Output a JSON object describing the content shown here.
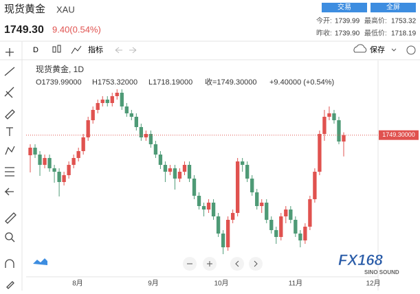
{
  "header": {
    "symbol": "现货黄金",
    "code": "XAU",
    "price": "1749.30",
    "change": "9.40(0.54%)",
    "buttons": [
      "交易",
      "全屏"
    ],
    "stats": [
      {
        "label": "今开:",
        "value": "1739.99"
      },
      {
        "label": "最高价:",
        "value": "1753.32"
      },
      {
        "label": "昨收:",
        "value": "1739.90"
      },
      {
        "label": "最低价:",
        "value": "1718.19"
      }
    ]
  },
  "toolbar": {
    "interval": "D",
    "indicators": "指标",
    "save": "保存"
  },
  "logo": {
    "name": "FX168",
    "sub": "SINO SOUND"
  },
  "chart_data": {
    "type": "candlestick",
    "legend_title": "现货黄金, 1D",
    "ohlc_text": [
      "O1739.99000",
      "H1753.32000",
      "L1718.19000",
      "收=1749.30000",
      "+9.40000 (+0.54%)"
    ],
    "up_color": "#e0524f",
    "down_color": "#4e9a76",
    "open": [
      1720,
      1731,
      1721,
      1706,
      1716,
      1701,
      1696,
      1681,
      1691,
      1706,
      1716,
      1726,
      1746,
      1771,
      1786,
      1796,
      1801,
      1796,
      1806,
      1811,
      1791,
      1781,
      1776,
      1761,
      1746,
      1751,
      1736,
      1721,
      1706,
      1696,
      1701,
      1686,
      1696,
      1706,
      1686,
      1661,
      1646,
      1641,
      1651,
      1631,
      1606,
      1586,
      1626,
      1636,
      1711,
      1706,
      1686,
      1666,
      1646,
      1651,
      1626,
      1611,
      1601,
      1631,
      1641,
      1626,
      1606,
      1596,
      1616,
      1656,
      1696,
      1751,
      1776,
      1781,
      1771,
      1739.99
    ],
    "high": [
      1736,
      1736,
      1726,
      1721,
      1721,
      1706,
      1701,
      1696,
      1711,
      1721,
      1731,
      1751,
      1776,
      1791,
      1801,
      1806,
      1806,
      1811,
      1816,
      1816,
      1796,
      1786,
      1781,
      1766,
      1756,
      1756,
      1741,
      1726,
      1711,
      1706,
      1706,
      1701,
      1711,
      1711,
      1691,
      1666,
      1651,
      1656,
      1656,
      1636,
      1611,
      1631,
      1641,
      1716,
      1716,
      1711,
      1691,
      1671,
      1656,
      1656,
      1631,
      1616,
      1636,
      1646,
      1646,
      1631,
      1611,
      1621,
      1661,
      1701,
      1756,
      1786,
      1791,
      1786,
      1776,
      1753.32
    ],
    "low": [
      1695,
      1716,
      1690,
      1701,
      1696,
      1680,
      1660,
      1676,
      1686,
      1701,
      1711,
      1721,
      1741,
      1766,
      1781,
      1791,
      1791,
      1791,
      1801,
      1786,
      1776,
      1771,
      1756,
      1741,
      1741,
      1731,
      1716,
      1700,
      1681,
      1691,
      1670,
      1681,
      1691,
      1681,
      1656,
      1641,
      1631,
      1636,
      1626,
      1601,
      1576,
      1581,
      1621,
      1631,
      1696,
      1681,
      1661,
      1641,
      1636,
      1621,
      1606,
      1591,
      1596,
      1621,
      1621,
      1601,
      1586,
      1591,
      1611,
      1651,
      1691,
      1741,
      1771,
      1766,
      1736,
      1718.19
    ],
    "close": [
      1731,
      1721,
      1706,
      1716,
      1701,
      1696,
      1681,
      1691,
      1706,
      1716,
      1726,
      1746,
      1771,
      1786,
      1796,
      1801,
      1796,
      1806,
      1811,
      1791,
      1781,
      1776,
      1761,
      1746,
      1751,
      1736,
      1721,
      1706,
      1696,
      1701,
      1686,
      1696,
      1706,
      1686,
      1661,
      1646,
      1641,
      1651,
      1631,
      1606,
      1586,
      1626,
      1636,
      1711,
      1706,
      1686,
      1666,
      1646,
      1651,
      1626,
      1611,
      1601,
      1631,
      1641,
      1626,
      1606,
      1596,
      1616,
      1656,
      1696,
      1751,
      1776,
      1781,
      1771,
      1740,
      1749.3
    ],
    "ylim": [
      1546,
      1856
    ],
    "price_line": {
      "value": 1749.3,
      "label": "1749.30000"
    },
    "x_labels": [
      "8月",
      "9月",
      "10月",
      "11月",
      "12月"
    ]
  }
}
